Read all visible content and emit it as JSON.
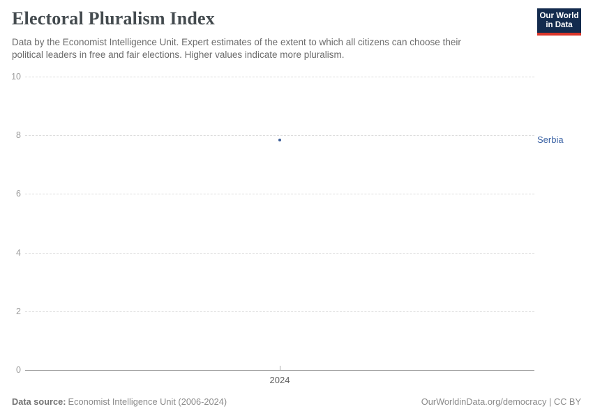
{
  "header": {
    "title": "Electoral Pluralism Index",
    "subtitle": "Data by the Economist Intelligence Unit. Expert estimates of the extent to which all citizens can choose their political leaders in free and fair elections. Higher values indicate more pluralism.",
    "logo": {
      "line1": "Our World",
      "line2": "in Data",
      "bg_color": "#132b4e",
      "accent_color": "#d9352a"
    }
  },
  "chart_data": {
    "type": "scatter",
    "title": "Electoral Pluralism Index",
    "series": [
      {
        "name": "Serbia",
        "color": "#3c5d97",
        "label_color": "#3d64a5",
        "points": [
          {
            "x": 2024,
            "y": 7.83
          }
        ]
      }
    ],
    "entity_label": "Serbia",
    "xticks": [
      "2024"
    ],
    "yticks": [
      0,
      2,
      4,
      6,
      8,
      10
    ],
    "ylim": [
      0,
      10
    ],
    "xlabel": "",
    "ylabel": "",
    "grid": true,
    "gridline_color": "#dcdcdc",
    "axis_color": "#8f8f8f"
  },
  "footer": {
    "source_label": "Data source:",
    "source_text": "Economist Intelligence Unit (2006-2024)",
    "credit": "OurWorldinData.org/democracy | CC BY"
  }
}
